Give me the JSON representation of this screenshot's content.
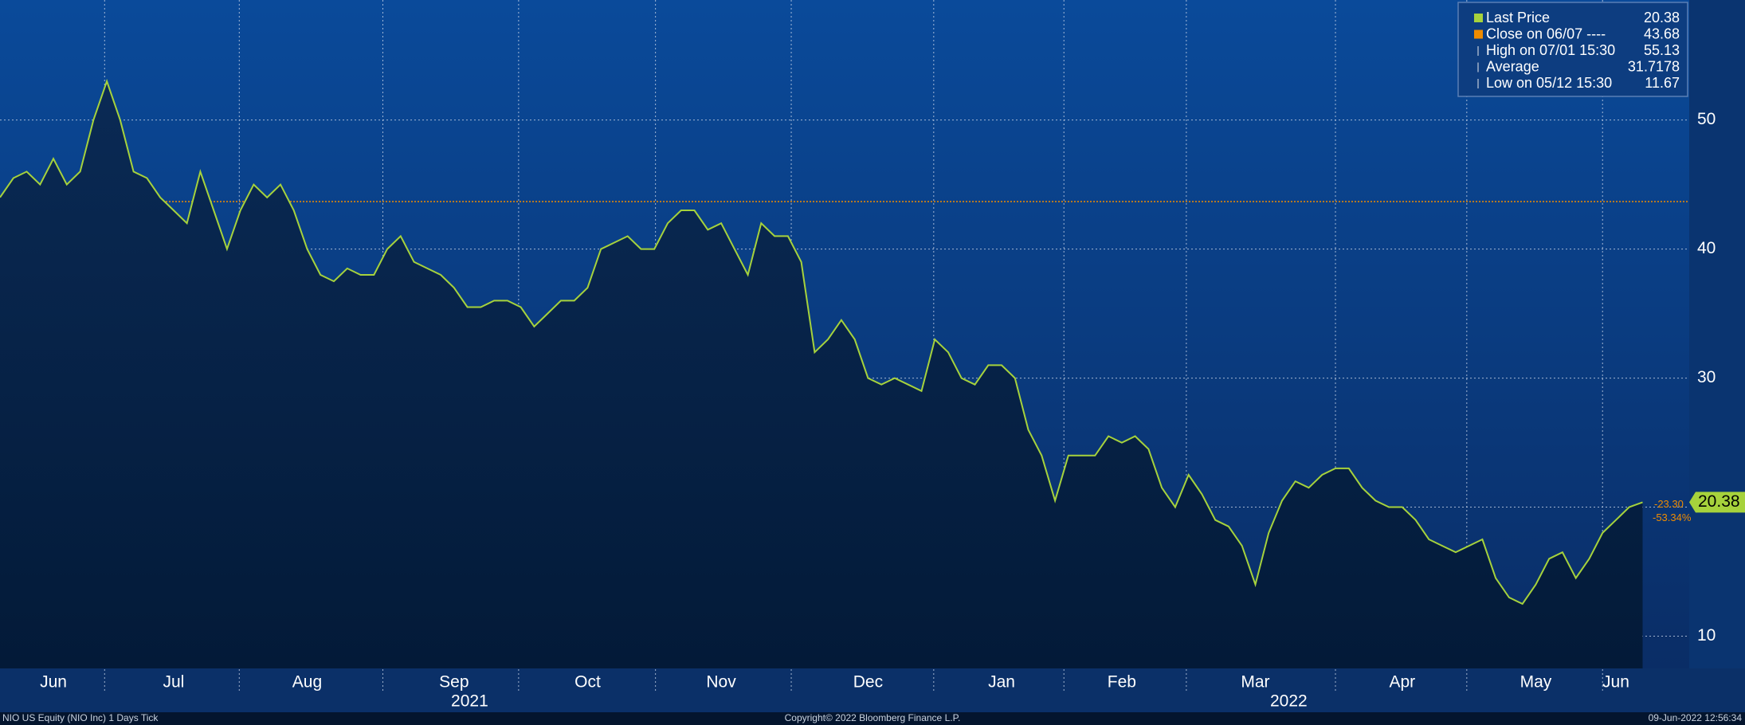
{
  "chart_data": {
    "type": "line",
    "title": "NIO US Equity (NIO Inc) 1 Days  Tick",
    "copyright": "Copyright© 2022 Bloomberg Finance L.P.",
    "timestamp": "09-Jun-2022 12:56:34",
    "years": [
      "2021",
      "2022"
    ],
    "categories": [
      null,
      null,
      null,
      null,
      "Jun",
      null,
      null,
      null,
      null,
      null,
      null,
      null,
      null,
      "Jul",
      null,
      null,
      null,
      null,
      null,
      null,
      null,
      null,
      null,
      "Aug",
      null,
      null,
      null,
      null,
      null,
      null,
      null,
      null,
      null,
      null,
      "Sep",
      null,
      null,
      null,
      null,
      null,
      null,
      null,
      null,
      null,
      "Oct",
      null,
      null,
      null,
      null,
      null,
      null,
      null,
      null,
      null,
      "Nov",
      null,
      null,
      null,
      null,
      null,
      null,
      null,
      null,
      null,
      null,
      "Dec",
      null,
      null,
      null,
      null,
      null,
      null,
      null,
      null,
      null,
      "Jan",
      null,
      null,
      null,
      null,
      null,
      null,
      null,
      null,
      "Feb",
      null,
      null,
      null,
      null,
      null,
      null,
      null,
      null,
      null,
      "Mar",
      null,
      null,
      null,
      null,
      null,
      null,
      null,
      null,
      null,
      null,
      "Apr",
      null,
      null,
      null,
      null,
      null,
      null,
      null,
      null,
      null,
      "May",
      null,
      null,
      null,
      null,
      null,
      "Jun",
      null,
      null
    ],
    "values": [
      44,
      45.5,
      46,
      45,
      47,
      45,
      46,
      50,
      53,
      50,
      46,
      45.5,
      44,
      43,
      42,
      46,
      43,
      40,
      43,
      45,
      44,
      45,
      43,
      40,
      38,
      37.5,
      38.5,
      38,
      38,
      40,
      41,
      39,
      38.5,
      38,
      37,
      35.5,
      35.5,
      36,
      36,
      35.5,
      34,
      35,
      36,
      36,
      37,
      40,
      40.5,
      41,
      40,
      40,
      42,
      43,
      43,
      41.5,
      42,
      40,
      38,
      42,
      41,
      41,
      39,
      32,
      33,
      34.5,
      33,
      30,
      29.5,
      30,
      29.5,
      29,
      33,
      32,
      30,
      29.5,
      31,
      31,
      30,
      26,
      24,
      20.5,
      24,
      24,
      24,
      25.5,
      25,
      25.5,
      24.5,
      21.5,
      20,
      22.5,
      21,
      19,
      18.5,
      17,
      14,
      18,
      20.5,
      22,
      21.5,
      22.5,
      23,
      23,
      21.5,
      20.5,
      20,
      20,
      19,
      17.5,
      17,
      16.5,
      17,
      17.5,
      14.5,
      13,
      12.5,
      14,
      16,
      16.5,
      14.5,
      16,
      18,
      19,
      20,
      20.38
    ],
    "color": "#a6d23c",
    "ylim": [
      7.5,
      59.3
    ],
    "yticks": [
      10,
      20,
      30,
      40,
      50
    ],
    "grid": true,
    "legend": [
      {
        "label": "Last Price",
        "value": 20.38,
        "color": "#a6d23c"
      },
      {
        "label": "Close on 06/07 ----",
        "value": 43.68,
        "color": "#f08c00"
      },
      {
        "label": "High on 07/01 15:30",
        "value": 55.13
      },
      {
        "label": "Average",
        "value": 31.7178
      },
      {
        "label": "Low on 05/12 15:30",
        "value": 11.67
      }
    ],
    "annotations": [
      "-23.30",
      "-53.34%"
    ]
  }
}
